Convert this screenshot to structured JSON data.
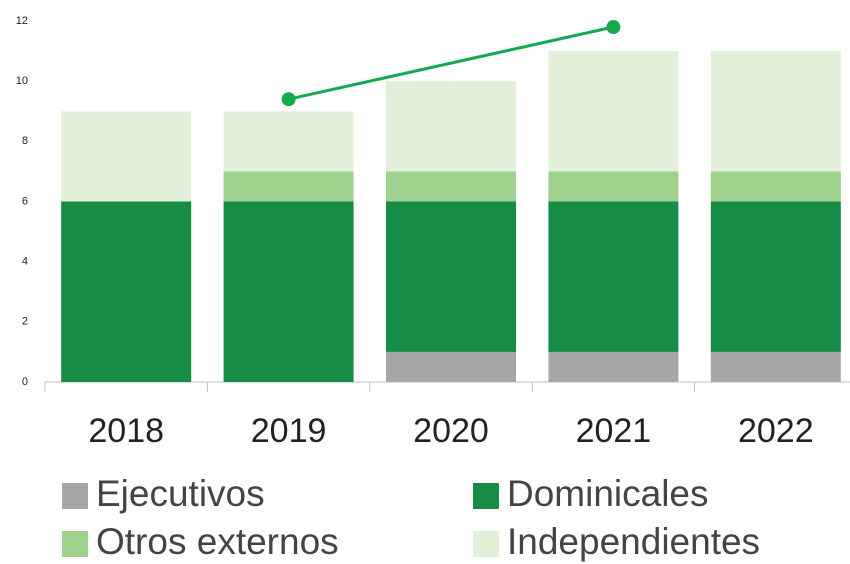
{
  "chart_data": {
    "type": "bar",
    "stacked": true,
    "categories": [
      "2018",
      "2019",
      "2020",
      "2021",
      "2022"
    ],
    "series": [
      {
        "name": "Ejecutivos",
        "color": "#a6a6a6",
        "values": [
          0,
          0,
          1,
          1,
          1
        ]
      },
      {
        "name": "Dominicales",
        "color": "#168c44",
        "values": [
          6,
          6,
          5,
          5,
          5
        ]
      },
      {
        "name": "Otros externos",
        "color": "#9fd18f",
        "values": [
          0,
          1,
          1,
          1,
          1
        ]
      },
      {
        "name": "Independientes",
        "color": "#e2f0d9",
        "values": [
          3,
          2,
          3,
          4,
          4
        ]
      }
    ],
    "line": {
      "color": "#16a84f",
      "x": [
        1,
        3
      ],
      "values": [
        9.4,
        11.8
      ]
    },
    "ylim": [
      0,
      12
    ],
    "yticks": [
      0,
      2,
      4,
      6,
      8,
      10,
      12
    ]
  }
}
